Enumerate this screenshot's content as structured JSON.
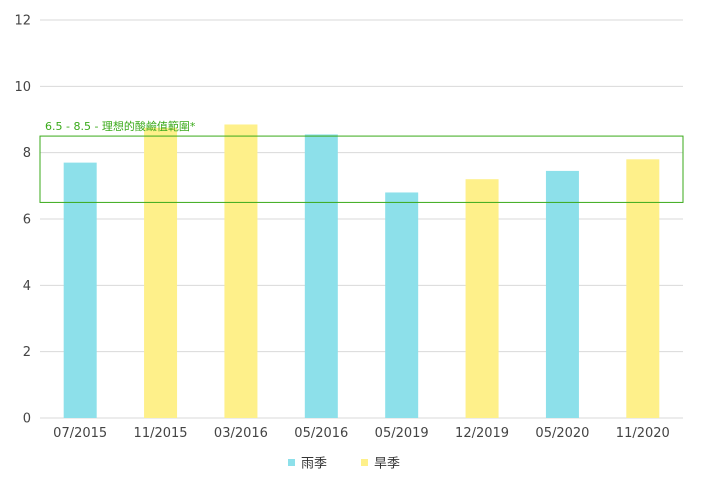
{
  "chart_data": {
    "type": "bar",
    "categories": [
      "07/2015",
      "11/2015",
      "03/2016",
      "05/2016",
      "05/2019",
      "12/2019",
      "05/2020",
      "11/2020"
    ],
    "values": [
      7.7,
      8.75,
      8.85,
      8.55,
      6.8,
      7.2,
      7.45,
      7.8
    ],
    "season": [
      "rain",
      "dry",
      "dry",
      "rain",
      "rain",
      "dry",
      "rain",
      "dry"
    ],
    "ylim": [
      0,
      12
    ],
    "yticks": [
      0,
      2,
      4,
      6,
      8,
      10,
      12
    ],
    "grid": true,
    "legend": {
      "placement": "bottom-center",
      "items": [
        {
          "key": "rain",
          "label": "雨季",
          "color": "#8de0ea"
        },
        {
          "key": "dry",
          "label": "旱季",
          "color": "#fef08a"
        }
      ]
    },
    "band": {
      "from": 6.5,
      "to": 8.5,
      "label": "6.5 - 8.5 - 理想的酸鹼值範圍*",
      "color": "#3aaa1a"
    },
    "title": "",
    "xlabel": "",
    "ylabel": ""
  }
}
